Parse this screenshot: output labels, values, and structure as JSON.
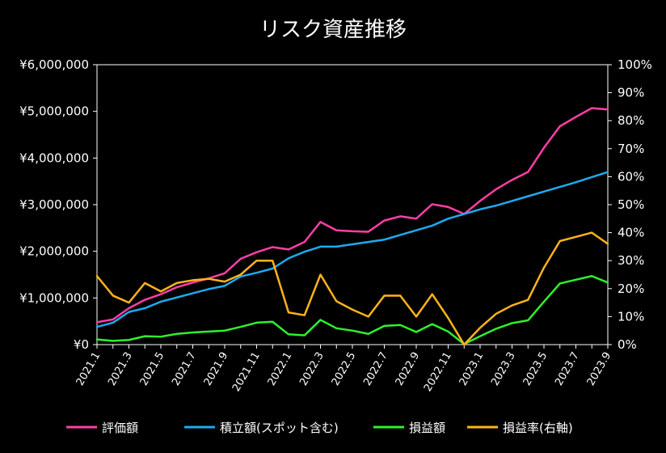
{
  "chart_data": {
    "type": "line",
    "title": "リスク資産推移",
    "categories": [
      "2021.1",
      "2021.2",
      "2021.3",
      "2021.4",
      "2021.5",
      "2021.6",
      "2021.7",
      "2021.8",
      "2021.9",
      "2021.10",
      "2021.11",
      "2021.12",
      "2022.1",
      "2022.2",
      "2022.3",
      "2022.4",
      "2022.5",
      "2022.6",
      "2022.7",
      "2022.8",
      "2022.9",
      "2022.10",
      "2022.11",
      "2022.12",
      "2023.1",
      "2023.2",
      "2023.3",
      "2023.4",
      "2023.5",
      "2023.6",
      "2023.7",
      "2023.8",
      "2023.9"
    ],
    "x_tick_labels": [
      "2021.1",
      "2021.3",
      "2021.5",
      "2021.7",
      "2021.9",
      "2021.11",
      "2022.1",
      "2022.3",
      "2022.5",
      "2022.7",
      "2022.9",
      "2022.11",
      "2023.1",
      "2023.3",
      "2023.5",
      "2023.7",
      "2023.9"
    ],
    "y_left": {
      "lim": [
        0,
        6000000
      ],
      "ticks": [
        "¥0",
        "¥1,000,000",
        "¥2,000,000",
        "¥3,000,000",
        "¥4,000,000",
        "¥5,000,000",
        "¥6,000,000"
      ]
    },
    "y_right": {
      "lim": [
        0,
        100
      ],
      "ticks": [
        "0%",
        "10%",
        "20%",
        "30%",
        "40%",
        "50%",
        "60%",
        "70%",
        "80%",
        "90%",
        "100%"
      ]
    },
    "grid": {
      "horizontal": false,
      "vertical": false
    },
    "legend_position": "bottom",
    "series": [
      {
        "name": "評価額",
        "color": "#ff3fa6",
        "axis": "left",
        "values": [
          480000,
          540000,
          780000,
          960000,
          1080000,
          1230000,
          1330000,
          1420000,
          1530000,
          1840000,
          1980000,
          2090000,
          2040000,
          2200000,
          2630000,
          2450000,
          2430000,
          2420000,
          2660000,
          2750000,
          2700000,
          3010000,
          2950000,
          2800000,
          3080000,
          3330000,
          3530000,
          3700000,
          4220000,
          4680000,
          4880000,
          5070000,
          5040000
        ]
      },
      {
        "name": "積立額(スポット含む)",
        "color": "#1eaaf0",
        "axis": "left",
        "values": [
          380000,
          470000,
          700000,
          780000,
          920000,
          1010000,
          1100000,
          1190000,
          1260000,
          1460000,
          1540000,
          1630000,
          1850000,
          1990000,
          2100000,
          2100000,
          2150000,
          2200000,
          2250000,
          2350000,
          2450000,
          2550000,
          2700000,
          2800000,
          2900000,
          2980000,
          3080000,
          3180000,
          3280000,
          3380000,
          3480000,
          3590000,
          3700000
        ]
      },
      {
        "name": "損益額",
        "color": "#2df22d",
        "axis": "left",
        "values": [
          110000,
          80000,
          100000,
          180000,
          170000,
          230000,
          260000,
          280000,
          300000,
          380000,
          470000,
          490000,
          220000,
          200000,
          530000,
          350000,
          300000,
          230000,
          400000,
          420000,
          270000,
          440000,
          280000,
          10000,
          180000,
          340000,
          460000,
          520000,
          920000,
          1310000,
          1390000,
          1470000,
          1330000
        ]
      },
      {
        "name": "損益率(右軸)",
        "color": "#ffb31a",
        "axis": "right",
        "values": [
          24.5,
          17.5,
          15,
          22,
          19,
          22,
          23,
          23.5,
          22.5,
          25,
          30,
          30,
          11.5,
          10.5,
          25,
          15.5,
          12.5,
          10,
          17.5,
          17.5,
          10,
          18,
          9.5,
          0,
          6,
          11,
          14,
          16,
          27.5,
          37,
          38.5,
          40,
          36
        ]
      }
    ]
  }
}
